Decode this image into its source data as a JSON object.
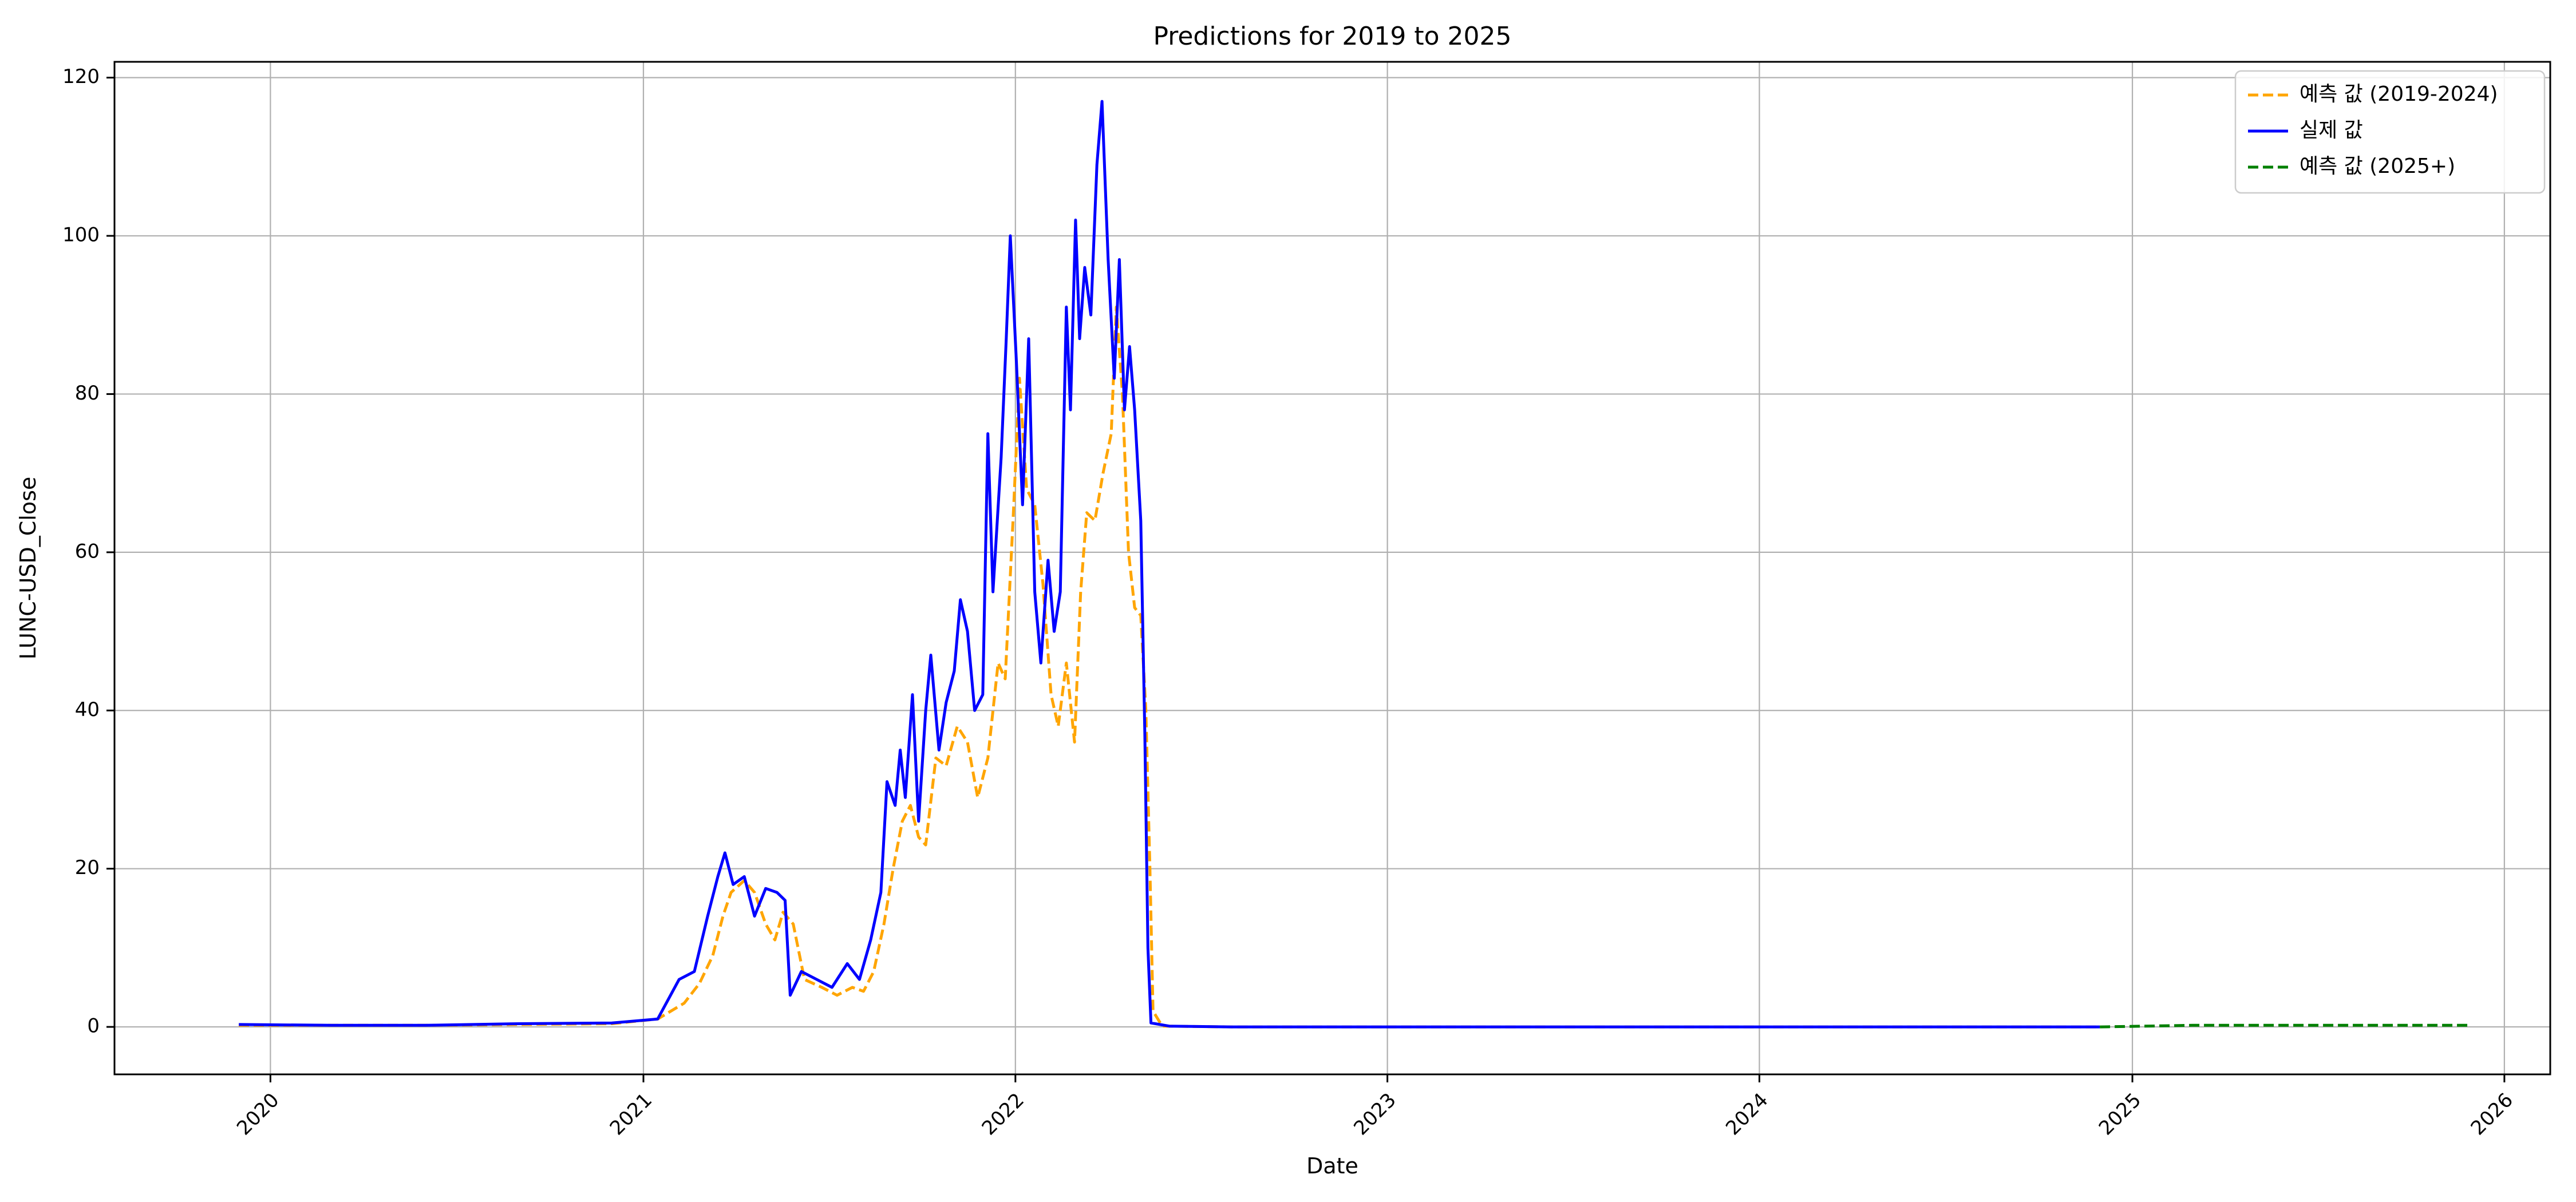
{
  "chart_data": {
    "type": "line",
    "title": "Predictions for 2019 to 2025",
    "xlabel": "Date",
    "ylabel": "LUNC-USD_Close",
    "x_range": [
      "2019-08-01",
      "2026-02-15"
    ],
    "ylim": [
      -6,
      122
    ],
    "x_ticks": [
      "2020-01-01",
      "2021-01-01",
      "2022-01-01",
      "2023-01-01",
      "2024-01-01",
      "2025-01-01",
      "2026-01-01"
    ],
    "x_tick_labels": [
      "2020",
      "2021",
      "2022",
      "2023",
      "2024",
      "2025",
      "2026"
    ],
    "y_ticks": [
      0,
      20,
      40,
      60,
      80,
      100,
      120
    ],
    "y_tick_labels": [
      "0",
      "20",
      "40",
      "60",
      "80",
      "100",
      "120"
    ],
    "grid": true,
    "legend_position": "top-right",
    "series": [
      {
        "name": "예측 값 (2019-2024)",
        "color": "#FFA500",
        "style": "dashed",
        "points": [
          [
            "2019-12-01",
            0.2
          ],
          [
            "2020-03-01",
            0.2
          ],
          [
            "2020-06-01",
            0.2
          ],
          [
            "2020-09-01",
            0.3
          ],
          [
            "2020-12-01",
            0.4
          ],
          [
            "2021-01-15",
            1.0
          ],
          [
            "2021-02-10",
            3.0
          ],
          [
            "2021-02-25",
            5.5
          ],
          [
            "2021-03-10",
            9.0
          ],
          [
            "2021-03-20",
            14.0
          ],
          [
            "2021-03-28",
            17.0
          ],
          [
            "2021-04-10",
            18.5
          ],
          [
            "2021-04-20",
            17.0
          ],
          [
            "2021-05-01",
            13.0
          ],
          [
            "2021-05-10",
            11.0
          ],
          [
            "2021-05-18",
            14.5
          ],
          [
            "2021-05-28",
            13.0
          ],
          [
            "2021-06-08",
            6.0
          ],
          [
            "2021-06-25",
            5.0
          ],
          [
            "2021-07-10",
            4.0
          ],
          [
            "2021-07-25",
            5.0
          ],
          [
            "2021-08-05",
            4.5
          ],
          [
            "2021-08-15",
            7.0
          ],
          [
            "2021-08-25",
            13.0
          ],
          [
            "2021-09-03",
            20.0
          ],
          [
            "2021-09-12",
            26.0
          ],
          [
            "2021-09-20",
            28.0
          ],
          [
            "2021-09-28",
            24.0
          ],
          [
            "2021-10-05",
            23.0
          ],
          [
            "2021-10-15",
            34.0
          ],
          [
            "2021-10-25",
            33.0
          ],
          [
            "2021-11-05",
            38.0
          ],
          [
            "2021-11-15",
            36.0
          ],
          [
            "2021-11-25",
            29.0
          ],
          [
            "2021-12-05",
            34.0
          ],
          [
            "2021-12-15",
            46.0
          ],
          [
            "2021-12-22",
            44.0
          ],
          [
            "2021-12-30",
            65.0
          ],
          [
            "2022-01-05",
            82.0
          ],
          [
            "2022-01-12",
            68.0
          ],
          [
            "2022-01-20",
            66.0
          ],
          [
            "2022-01-28",
            56.0
          ],
          [
            "2022-02-05",
            42.0
          ],
          [
            "2022-02-12",
            38.0
          ],
          [
            "2022-02-20",
            46.0
          ],
          [
            "2022-02-28",
            36.0
          ],
          [
            "2022-03-06",
            55.0
          ],
          [
            "2022-03-12",
            65.0
          ],
          [
            "2022-03-20",
            64.0
          ],
          [
            "2022-03-28",
            70.0
          ],
          [
            "2022-04-05",
            75.0
          ],
          [
            "2022-04-10",
            91.0
          ],
          [
            "2022-04-16",
            80.0
          ],
          [
            "2022-04-22",
            60.0
          ],
          [
            "2022-04-28",
            53.0
          ],
          [
            "2022-05-04",
            52.0
          ],
          [
            "2022-05-09",
            40.0
          ],
          [
            "2022-05-13",
            20.0
          ],
          [
            "2022-05-16",
            2.0
          ],
          [
            "2022-05-25",
            0.1
          ],
          [
            "2022-08-01",
            0.0
          ],
          [
            "2023-06-01",
            0.0
          ],
          [
            "2024-11-30",
            0.0
          ]
        ]
      },
      {
        "name": "실제 값",
        "color": "#0000FF",
        "style": "solid",
        "points": [
          [
            "2019-12-01",
            0.3
          ],
          [
            "2020-03-01",
            0.2
          ],
          [
            "2020-06-01",
            0.2
          ],
          [
            "2020-09-01",
            0.4
          ],
          [
            "2020-12-01",
            0.5
          ],
          [
            "2021-01-15",
            1.0
          ],
          [
            "2021-02-05",
            6.0
          ],
          [
            "2021-02-20",
            7.0
          ],
          [
            "2021-03-05",
            14.0
          ],
          [
            "2021-03-15",
            19.0
          ],
          [
            "2021-03-22",
            22.0
          ],
          [
            "2021-03-30",
            18.0
          ],
          [
            "2021-04-10",
            19.0
          ],
          [
            "2021-04-20",
            14.0
          ],
          [
            "2021-05-01",
            17.5
          ],
          [
            "2021-05-12",
            17.0
          ],
          [
            "2021-05-20",
            16.0
          ],
          [
            "2021-05-25",
            4.0
          ],
          [
            "2021-06-05",
            7.0
          ],
          [
            "2021-06-20",
            6.0
          ],
          [
            "2021-07-05",
            5.0
          ],
          [
            "2021-07-20",
            8.0
          ],
          [
            "2021-08-01",
            6.0
          ],
          [
            "2021-08-12",
            11.0
          ],
          [
            "2021-08-22",
            17.0
          ],
          [
            "2021-08-28",
            31.0
          ],
          [
            "2021-09-05",
            28.0
          ],
          [
            "2021-09-10",
            35.0
          ],
          [
            "2021-09-15",
            29.0
          ],
          [
            "2021-09-22",
            42.0
          ],
          [
            "2021-09-28",
            26.0
          ],
          [
            "2021-10-05",
            40.0
          ],
          [
            "2021-10-10",
            47.0
          ],
          [
            "2021-10-18",
            35.0
          ],
          [
            "2021-10-25",
            41.0
          ],
          [
            "2021-11-02",
            45.0
          ],
          [
            "2021-11-08",
            54.0
          ],
          [
            "2021-11-15",
            50.0
          ],
          [
            "2021-11-22",
            40.0
          ],
          [
            "2021-11-30",
            42.0
          ],
          [
            "2021-12-05",
            75.0
          ],
          [
            "2021-12-10",
            55.0
          ],
          [
            "2021-12-18",
            72.0
          ],
          [
            "2021-12-23",
            87.0
          ],
          [
            "2021-12-27",
            100.0
          ],
          [
            "2022-01-02",
            84.0
          ],
          [
            "2022-01-08",
            66.0
          ],
          [
            "2022-01-14",
            87.0
          ],
          [
            "2022-01-20",
            55.0
          ],
          [
            "2022-01-26",
            46.0
          ],
          [
            "2022-02-02",
            59.0
          ],
          [
            "2022-02-08",
            50.0
          ],
          [
            "2022-02-14",
            55.0
          ],
          [
            "2022-02-20",
            91.0
          ],
          [
            "2022-02-24",
            78.0
          ],
          [
            "2022-03-01",
            102.0
          ],
          [
            "2022-03-05",
            87.0
          ],
          [
            "2022-03-10",
            96.0
          ],
          [
            "2022-03-16",
            90.0
          ],
          [
            "2022-03-22",
            109.0
          ],
          [
            "2022-03-27",
            117.0
          ],
          [
            "2022-04-02",
            97.0
          ],
          [
            "2022-04-08",
            82.0
          ],
          [
            "2022-04-13",
            97.0
          ],
          [
            "2022-04-18",
            78.0
          ],
          [
            "2022-04-23",
            86.0
          ],
          [
            "2022-04-28",
            78.0
          ],
          [
            "2022-05-04",
            64.0
          ],
          [
            "2022-05-08",
            37.0
          ],
          [
            "2022-05-11",
            10.0
          ],
          [
            "2022-05-14",
            0.5
          ],
          [
            "2022-06-01",
            0.1
          ],
          [
            "2022-08-01",
            0.0
          ],
          [
            "2023-06-01",
            0.0
          ],
          [
            "2024-11-30",
            0.0
          ]
        ]
      },
      {
        "name": "예측 값 (2025+)",
        "color": "#008000",
        "style": "dashed",
        "points": [
          [
            "2024-11-30",
            0.0
          ],
          [
            "2025-03-01",
            0.2
          ],
          [
            "2025-06-01",
            0.2
          ],
          [
            "2025-09-01",
            0.2
          ],
          [
            "2025-11-30",
            0.2
          ]
        ]
      }
    ]
  }
}
